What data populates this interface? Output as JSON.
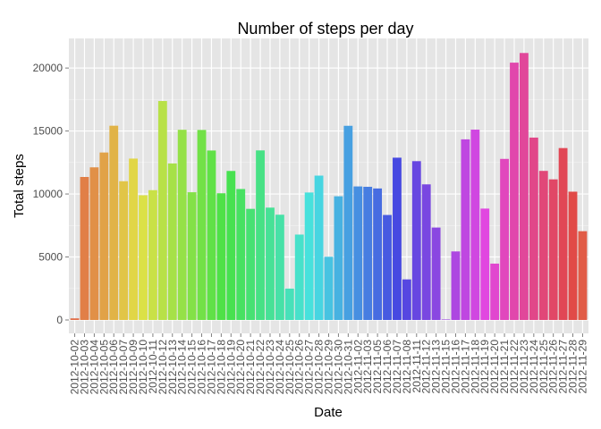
{
  "chart_data": {
    "type": "bar",
    "title": "Number of steps per day",
    "xlabel": "Date",
    "ylabel": "Total steps",
    "ylim": [
      -1065,
      22350
    ],
    "yticks": [
      0,
      5000,
      10000,
      15000,
      20000
    ],
    "grid": true,
    "legend": "none",
    "panel_background": "#e5e5e5",
    "grid_color": "#ffffff",
    "categories": [
      "2012-10-02",
      "2012-10-03",
      "2012-10-04",
      "2012-10-05",
      "2012-10-06",
      "2012-10-07",
      "2012-10-09",
      "2012-10-10",
      "2012-10-11",
      "2012-10-12",
      "2012-10-13",
      "2012-10-14",
      "2012-10-15",
      "2012-10-16",
      "2012-10-17",
      "2012-10-18",
      "2012-10-19",
      "2012-10-20",
      "2012-10-21",
      "2012-10-22",
      "2012-10-23",
      "2012-10-24",
      "2012-10-25",
      "2012-10-26",
      "2012-10-27",
      "2012-10-28",
      "2012-10-29",
      "2012-10-30",
      "2012-10-31",
      "2012-11-02",
      "2012-11-03",
      "2012-11-05",
      "2012-11-06",
      "2012-11-07",
      "2012-11-08",
      "2012-11-11",
      "2012-11-12",
      "2012-11-13",
      "2012-11-15",
      "2012-11-16",
      "2012-11-17",
      "2012-11-18",
      "2012-11-19",
      "2012-11-20",
      "2012-11-21",
      "2012-11-22",
      "2012-11-23",
      "2012-11-24",
      "2012-11-25",
      "2012-11-26",
      "2012-11-27",
      "2012-11-28",
      "2012-11-29"
    ],
    "values": [
      126,
      11352,
      12116,
      13294,
      15420,
      11015,
      12811,
      9900,
      10304,
      17382,
      12426,
      15098,
      10139,
      15084,
      13452,
      10056,
      11829,
      10395,
      8821,
      13460,
      8918,
      8355,
      2492,
      6778,
      10119,
      11458,
      5018,
      9819,
      15414,
      10600,
      10571,
      10439,
      8334,
      12883,
      3219,
      12608,
      10765,
      7336,
      41,
      5441,
      14339,
      15110,
      8841,
      4472,
      12787,
      20427,
      21194,
      14478,
      11834,
      11162,
      13646,
      10183,
      7047
    ],
    "x_tick_labels": [
      "2012-10-02",
      "2012-10-03",
      "2012-10-04",
      "2012-10-05",
      "2012-10-06",
      "2012-10-07",
      "2012-10-09",
      "2012-10-10",
      "2012-10-11",
      "2012-10-12",
      "2012-10-13",
      "2012-10-14",
      "2012-10-15",
      "2012-10-16",
      "2012-10-17",
      "2012-10-18",
      "2012-10-19",
      "2012-10-20",
      "2012-10-21",
      "2012-10-22",
      "2012-10-23",
      "2012-10-24",
      "2012-10-25",
      "2012-10-26",
      "2012-10-27",
      "2012-10-28",
      "2012-10-29",
      "2012-10-30",
      "2012-10-31",
      "2012-11-02",
      "2012-11-03",
      "2012-11-05",
      "2012-11-06",
      "2012-11-07",
      "2012-11-08",
      "2012-11-11",
      "2012-11-12",
      "2012-11-13",
      "2012-11-15",
      "2012-11-16",
      "2012-11-17",
      "2012-11-18",
      "2012-11-19",
      "2012-11-20",
      "2012-11-21",
      "2012-11-22",
      "2012-11-23",
      "2012-11-24",
      "2012-11-25",
      "2012-11-26",
      "2012-11-27",
      "2012-11-28",
      "2012-11-29"
    ]
  }
}
